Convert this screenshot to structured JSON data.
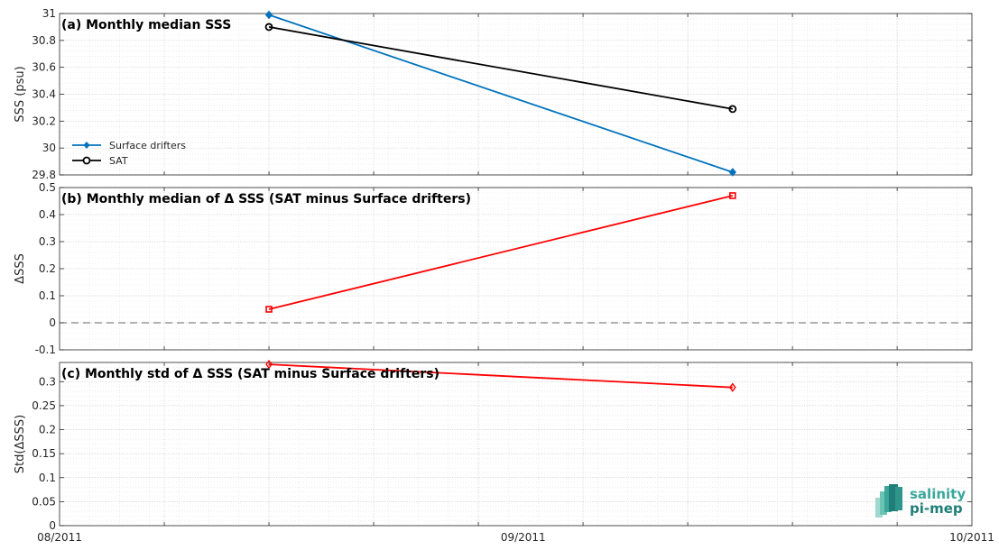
{
  "chart_data": [
    {
      "panel": "a",
      "type": "line",
      "title": "(a) Monthly median SSS",
      "ylabel": "SSS (psu)",
      "xlim": [
        "2011-08-01",
        "2011-10-01"
      ],
      "ylim": [
        29.8,
        31
      ],
      "yticks": [
        29.8,
        30,
        30.2,
        30.4,
        30.6,
        30.8,
        31
      ],
      "ytick_labels": [
        "29.8",
        "30",
        "30.2",
        "30.4",
        "30.6",
        "30.8",
        "31"
      ],
      "grid": true,
      "legend_position": "lower-left",
      "series": [
        {
          "name": "Surface drifters",
          "color": "#0072BD",
          "marker": "diamond-filled",
          "x": [
            "2011-08-15",
            "2011-09-15"
          ],
          "y": [
            30.99,
            29.82
          ]
        },
        {
          "name": "SAT",
          "color": "#000000",
          "marker": "circle-open",
          "x": [
            "2011-08-15",
            "2011-09-15"
          ],
          "y": [
            30.9,
            30.29
          ]
        }
      ]
    },
    {
      "panel": "b",
      "type": "line",
      "title": "(b) Monthly median of Δ SSS (SAT minus Surface drifters)",
      "ylabel": "ΔSSS",
      "xlim": [
        "2011-08-01",
        "2011-10-01"
      ],
      "ylim": [
        -0.1,
        0.5
      ],
      "yticks": [
        -0.1,
        0,
        0.1,
        0.2,
        0.3,
        0.4,
        0.5
      ],
      "ytick_labels": [
        "-0.1",
        "0",
        "0.1",
        "0.2",
        "0.3",
        "0.4",
        "0.5"
      ],
      "grid": true,
      "zero_line": true,
      "series": [
        {
          "color": "#FF0000",
          "marker": "square-open",
          "x": [
            "2011-08-15",
            "2011-09-15"
          ],
          "y": [
            0.05,
            0.47
          ]
        }
      ]
    },
    {
      "panel": "c",
      "type": "line",
      "title": "(c) Monthly std of Δ SSS (SAT minus Surface drifters)",
      "ylabel": "Std(ΔSSS)",
      "xlim": [
        "2011-08-01",
        "2011-10-01"
      ],
      "ylim": [
        0,
        0.34
      ],
      "yticks": [
        0,
        0.05,
        0.1,
        0.15,
        0.2,
        0.25,
        0.3
      ],
      "ytick_labels": [
        "0",
        "0.05",
        "0.1",
        "0.15",
        "0.2",
        "0.25",
        "0.3"
      ],
      "xticks": [
        "2011-08-01",
        "2011-09-01",
        "2011-10-01"
      ],
      "xtick_labels": [
        "08/2011",
        "09/2011",
        "10/2011"
      ],
      "grid": true,
      "series": [
        {
          "color": "#FF0000",
          "marker": "diamond-open",
          "x": [
            "2011-08-15",
            "2011-09-15"
          ],
          "y": [
            0.336,
            0.288
          ]
        }
      ]
    }
  ],
  "logo": {
    "line1": "salinity",
    "line2": "pi-mep",
    "color1": "#3aa79a",
    "color2": "#1f7f78"
  }
}
